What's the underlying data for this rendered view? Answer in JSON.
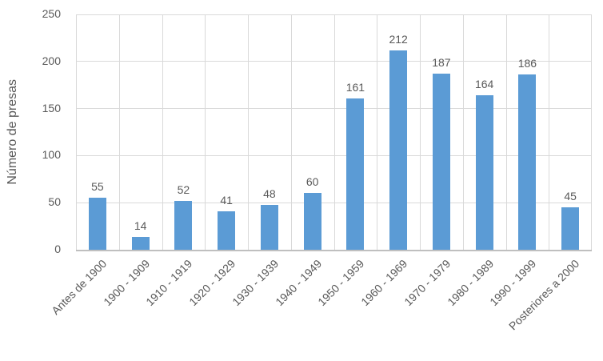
{
  "chart_data": {
    "type": "bar",
    "title": "",
    "xlabel": "",
    "ylabel": "Número de presas",
    "categories": [
      "Antes de 1900",
      "1900 - 1909",
      "1910 - 1919",
      "1920 - 1929",
      "1930 - 1939",
      "1940 - 1949",
      "1950 - 1959",
      "1960 - 1969",
      "1970 - 1979",
      "1980 - 1989",
      "1990 - 1999",
      "Posteriores a 2000"
    ],
    "values": [
      55,
      14,
      52,
      41,
      48,
      60,
      161,
      212,
      187,
      164,
      186,
      45
    ],
    "ylim": [
      0,
      250
    ],
    "yticks": [
      0,
      50,
      100,
      150,
      200,
      250
    ],
    "grid": "horizontal-and-vertical",
    "legend": "none",
    "data_labels": true,
    "x_tick_rotation_deg": 45,
    "colors": {
      "bar": "#5b9bd5",
      "gridline": "#d9d9d9",
      "axis_line": "#bfbfbf",
      "text": "#595959"
    }
  }
}
